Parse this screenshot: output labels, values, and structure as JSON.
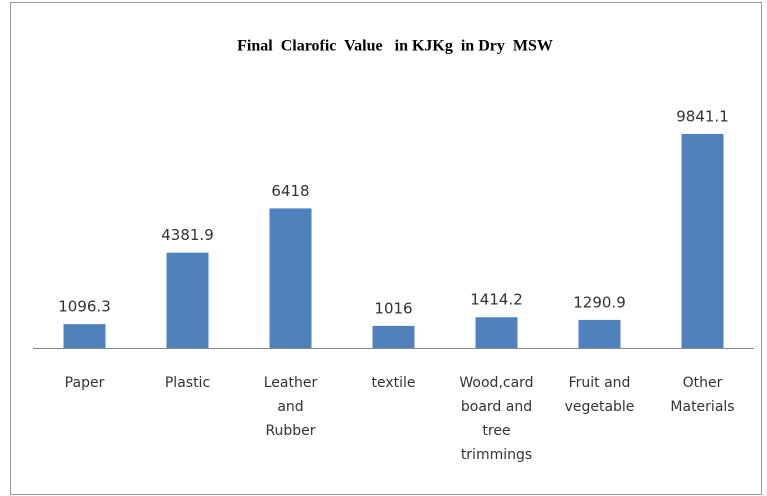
{
  "chart_data": {
    "type": "bar",
    "title": "Final  Clarofic  Value   in KJKg  in Dry  MSW",
    "categories": [
      "Paper",
      "Plastic",
      "Leather and Rubber",
      "textile",
      "Wood,card board and tree trimmings",
      "Fruit and vegetable",
      "Other Materials"
    ],
    "values": [
      1096.3,
      4381.9,
      6418,
      1016,
      1414.2,
      1290.9,
      9841.1
    ],
    "color": "#4f81bd",
    "ylim": [
      0,
      12000
    ]
  }
}
